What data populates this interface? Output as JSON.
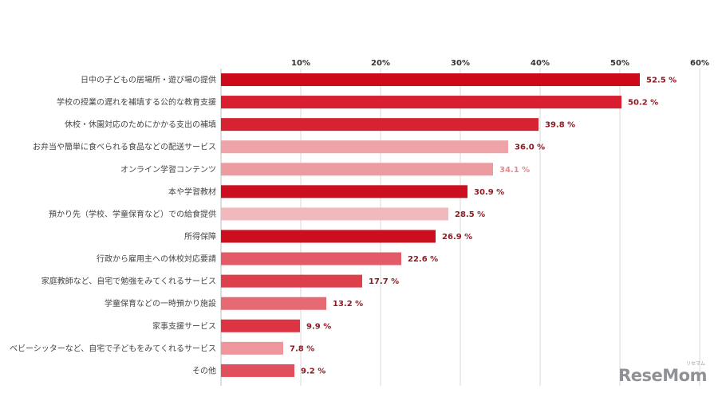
{
  "chart_data": {
    "type": "bar",
    "orientation": "horizontal",
    "categories": [
      "日中の子どもの居場所・遊び場の提供",
      "学校の授業の遅れを補填する公的な教育支援",
      "休校・休園対応のためにかかる支出の補填",
      "お弁当や簡単に食べられる食品などの配送サービス",
      "オンライン学習コンテンツ",
      "本や学習教材",
      "預かり先（学校、学童保育など）での給食提供",
      "所得保障",
      "行政から雇用主への休校対応要請",
      "家庭教師など、自宅で勉強をみてくれるサービス",
      "学童保育などの一時預かり施設",
      "家事支援サービス",
      "ベビーシッターなど、自宅で子どもをみてくれるサービス",
      "その他"
    ],
    "values": [
      52.5,
      50.2,
      39.8,
      36.0,
      34.1,
      30.9,
      28.5,
      26.9,
      22.6,
      17.7,
      13.2,
      9.9,
      7.8,
      9.2
    ],
    "value_labels": [
      "52.5 %",
      "50.2 %",
      "39.8 %",
      "36.0 %",
      "34.1 %",
      "30.9 %",
      "28.5 %",
      "26.9 %",
      "22.6 %",
      "17.7 %",
      "13.2 %",
      "9.9 %",
      "7.8 %",
      "9.2 %"
    ],
    "bar_colors": [
      "#cc0a1a",
      "#d81f2f",
      "#d52332",
      "#eea3a8",
      "#ec9ca1",
      "#cc0f1f",
      "#f2b9bc",
      "#cc0f1f",
      "#e25b66",
      "#de3f4c",
      "#e66a74",
      "#dc3443",
      "#ee969c",
      "#e0505c"
    ],
    "label_colors": [
      "#8f1a22",
      "#8f1a22",
      "#8f1a22",
      "#8f1a22",
      "#e48990",
      "#8f1a22",
      "#8f1a22",
      "#8f1a22",
      "#8f1a22",
      "#8f1a22",
      "#8f1a22",
      "#8f1a22",
      "#8f1a22",
      "#8f1a22"
    ],
    "xlim": [
      0,
      60
    ],
    "ticks": [
      10,
      20,
      30,
      40,
      50,
      60
    ],
    "tick_labels": [
      "10%",
      "20%",
      "30%",
      "40%",
      "50%",
      "60%"
    ],
    "grid": true,
    "axis_position": "top"
  },
  "watermark": {
    "text": "ReseMom",
    "subtext": "リセマム"
  }
}
